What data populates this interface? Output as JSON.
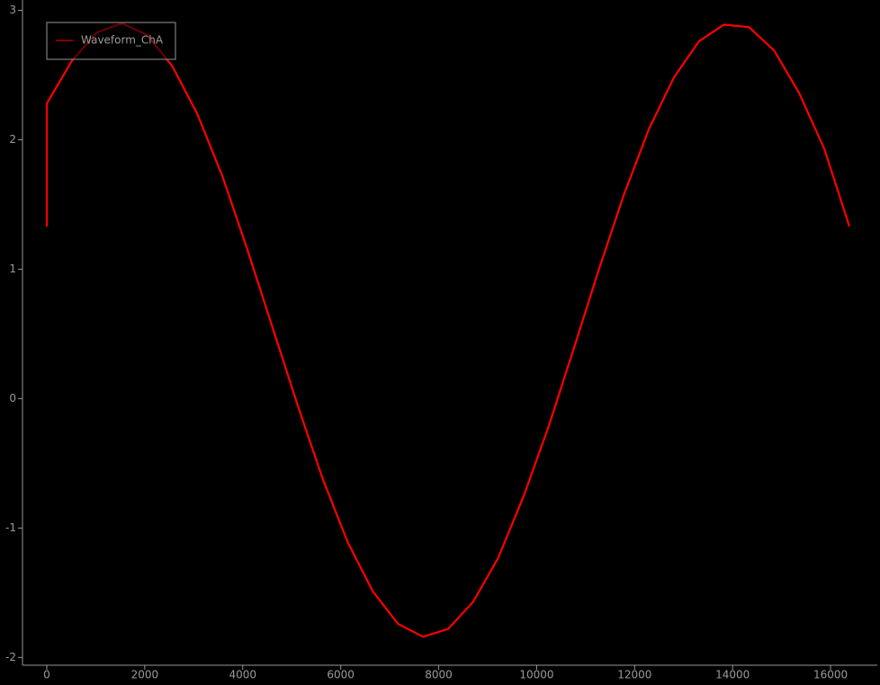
{
  "chart_data": {
    "type": "line",
    "x": [
      0,
      0,
      512,
      1024,
      1536,
      2048,
      2560,
      3072,
      3584,
      4096,
      4608,
      5120,
      5632,
      6144,
      6656,
      7168,
      7680,
      8192,
      8704,
      9216,
      9728,
      10240,
      10752,
      11264,
      11776,
      12288,
      12800,
      13312,
      13824,
      14336,
      14848,
      15360,
      15872,
      16384
    ],
    "series": [
      {
        "name": "Waveform_ChA",
        "color": "#ff0000",
        "values": [
          1.33,
          2.28,
          2.61,
          2.83,
          2.9,
          2.81,
          2.57,
          2.2,
          1.72,
          1.15,
          0.55,
          -0.05,
          -0.62,
          -1.11,
          -1.49,
          -1.74,
          -1.84,
          -1.78,
          -1.57,
          -1.23,
          -0.76,
          -0.22,
          0.38,
          0.99,
          1.57,
          2.08,
          2.48,
          2.76,
          2.89,
          2.87,
          2.69,
          2.36,
          1.93,
          1.33
        ]
      }
    ],
    "xlim": [
      -496,
      16954
    ],
    "ylim": [
      -2.06,
      3.08
    ],
    "xticks": [
      0,
      2000,
      4000,
      6000,
      8000,
      10000,
      12000,
      14000,
      16000
    ],
    "yticks": [
      -2,
      -1,
      0,
      1,
      2,
      3
    ],
    "legend": "upper left",
    "grid": false
  }
}
